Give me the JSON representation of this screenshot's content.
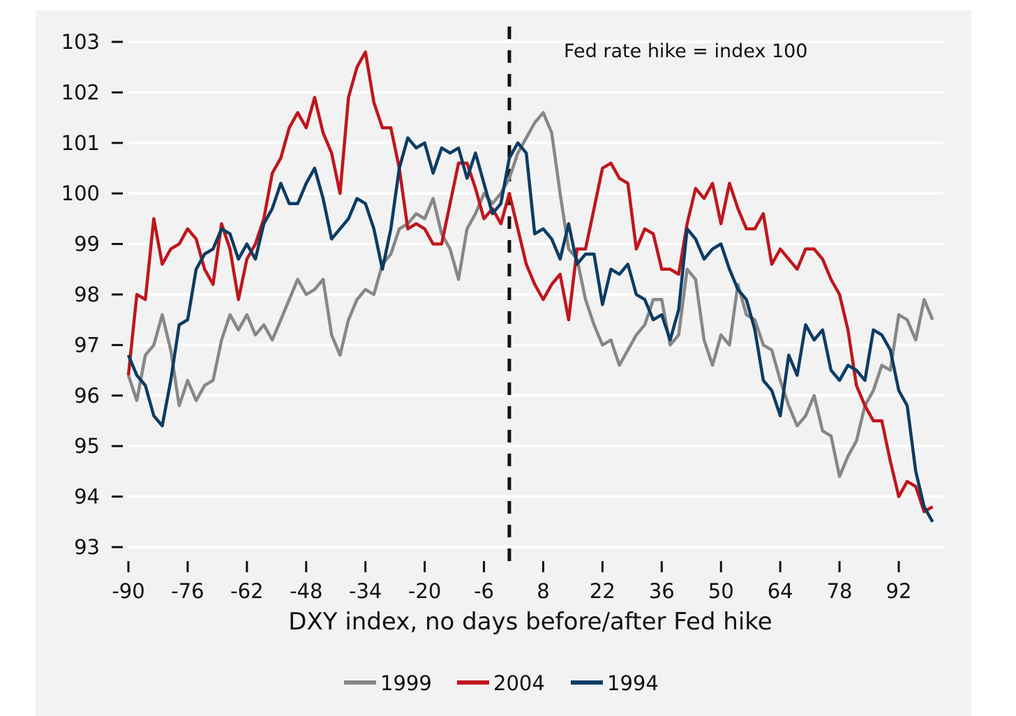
{
  "chart_data": {
    "type": "line",
    "title": "",
    "xlabel": "DXY index, no days before/after Fed hike",
    "ylabel": "",
    "annotation": "Fed rate hike = index 100",
    "event_line_x": 0,
    "xlim": [
      -90,
      100
    ],
    "ylim": [
      93,
      103
    ],
    "yticks": [
      93,
      94,
      95,
      96,
      97,
      98,
      99,
      100,
      101,
      102,
      103
    ],
    "xticks": [
      -90,
      -76,
      -62,
      -48,
      -34,
      -20,
      -6,
      8,
      22,
      36,
      50,
      64,
      78,
      92
    ],
    "grid": "horizontal",
    "legend_position": "bottom-center",
    "x": [
      -90,
      -88,
      -86,
      -84,
      -82,
      -80,
      -78,
      -76,
      -74,
      -72,
      -70,
      -68,
      -66,
      -64,
      -62,
      -60,
      -58,
      -56,
      -54,
      -52,
      -50,
      -48,
      -46,
      -44,
      -42,
      -40,
      -38,
      -36,
      -34,
      -32,
      -30,
      -28,
      -26,
      -24,
      -22,
      -20,
      -18,
      -16,
      -14,
      -12,
      -10,
      -8,
      -6,
      -4,
      -2,
      0,
      2,
      4,
      6,
      8,
      10,
      12,
      14,
      16,
      18,
      20,
      22,
      24,
      26,
      28,
      30,
      32,
      34,
      36,
      38,
      40,
      42,
      44,
      46,
      48,
      50,
      52,
      54,
      56,
      58,
      60,
      62,
      64,
      66,
      68,
      70,
      72,
      74,
      76,
      78,
      80,
      82,
      84,
      86,
      88,
      90,
      92,
      94,
      96,
      98,
      100
    ],
    "series": [
      {
        "name": "1999",
        "color": "#878787",
        "values": [
          96.4,
          95.9,
          96.8,
          97.0,
          97.6,
          96.9,
          95.8,
          96.3,
          95.9,
          96.2,
          96.3,
          97.1,
          97.6,
          97.3,
          97.6,
          97.2,
          97.4,
          97.1,
          97.5,
          97.9,
          98.3,
          98.0,
          98.1,
          98.3,
          97.2,
          96.8,
          97.5,
          97.9,
          98.1,
          98.0,
          98.6,
          98.8,
          99.3,
          99.4,
          99.6,
          99.5,
          99.9,
          99.2,
          98.9,
          98.3,
          99.3,
          99.6,
          100.0,
          99.8,
          100.0,
          100.3,
          100.8,
          101.1,
          101.4,
          101.6,
          101.2,
          100.0,
          98.9,
          98.7,
          97.9,
          97.4,
          97.0,
          97.1,
          96.6,
          96.9,
          97.2,
          97.4,
          97.9,
          97.9,
          97.0,
          97.2,
          98.5,
          98.3,
          97.1,
          96.6,
          97.2,
          97.0,
          98.2,
          97.6,
          97.5,
          97.0,
          96.9,
          96.3,
          95.8,
          95.4,
          95.6,
          96.0,
          95.3,
          95.2,
          94.4,
          94.8,
          95.1,
          95.8,
          96.1,
          96.6,
          96.5,
          97.6,
          97.5,
          97.1,
          97.9,
          97.5
        ]
      },
      {
        "name": "2004",
        "color": "#c0161c",
        "values": [
          96.4,
          98.0,
          97.9,
          99.5,
          98.6,
          98.9,
          99.0,
          99.3,
          99.1,
          98.5,
          98.2,
          99.4,
          98.9,
          97.9,
          98.7,
          99.0,
          99.5,
          100.4,
          100.7,
          101.3,
          101.6,
          101.3,
          101.9,
          101.2,
          100.8,
          100.0,
          101.9,
          102.5,
          102.8,
          101.8,
          101.3,
          101.3,
          100.5,
          99.3,
          99.4,
          99.3,
          99.0,
          99.0,
          99.8,
          100.6,
          100.6,
          100.1,
          99.5,
          99.7,
          99.4,
          100.0,
          99.3,
          98.6,
          98.2,
          97.9,
          98.2,
          98.4,
          97.5,
          98.9,
          98.9,
          99.7,
          100.5,
          100.6,
          100.3,
          100.2,
          98.9,
          99.3,
          99.2,
          98.5,
          98.5,
          98.4,
          99.4,
          100.1,
          99.9,
          100.2,
          99.4,
          100.2,
          99.7,
          99.3,
          99.3,
          99.6,
          98.6,
          98.9,
          98.7,
          98.5,
          98.9,
          98.9,
          98.7,
          98.3,
          98.0,
          97.3,
          96.2,
          95.8,
          95.5,
          95.5,
          94.7,
          94.0,
          94.3,
          94.2,
          93.7,
          93.8
        ]
      },
      {
        "name": "1994",
        "color": "#0c3c64",
        "values": [
          96.8,
          96.4,
          96.2,
          95.6,
          95.4,
          96.3,
          97.4,
          97.5,
          98.5,
          98.8,
          98.9,
          99.3,
          99.2,
          98.7,
          99.0,
          98.7,
          99.4,
          99.7,
          100.2,
          99.8,
          99.8,
          100.2,
          100.5,
          99.9,
          99.1,
          99.3,
          99.5,
          99.9,
          99.8,
          99.3,
          98.5,
          99.3,
          100.5,
          101.1,
          100.9,
          101.0,
          100.4,
          100.9,
          100.8,
          100.9,
          100.3,
          100.8,
          100.2,
          99.6,
          99.8,
          100.7,
          101.0,
          100.8,
          99.2,
          99.3,
          99.1,
          98.7,
          99.4,
          98.6,
          98.8,
          98.8,
          97.8,
          98.5,
          98.4,
          98.6,
          98.0,
          97.9,
          97.5,
          97.6,
          97.1,
          97.7,
          99.3,
          99.1,
          98.7,
          98.9,
          99.0,
          98.5,
          98.1,
          97.9,
          97.3,
          96.3,
          96.1,
          95.6,
          96.8,
          96.4,
          97.4,
          97.1,
          97.3,
          96.5,
          96.3,
          96.6,
          96.5,
          96.3,
          97.3,
          97.2,
          96.9,
          96.1,
          95.8,
          94.5,
          93.8,
          93.5
        ]
      }
    ]
  }
}
